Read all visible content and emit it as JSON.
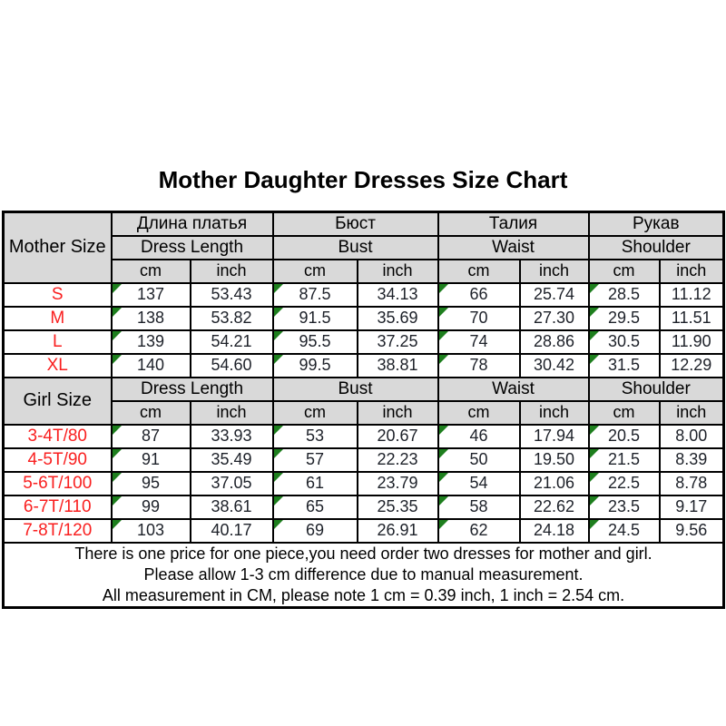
{
  "title": "Mother Daughter Dresses Size Chart",
  "colors": {
    "header_bg": "#d9d9d9",
    "border": "#000000",
    "size_label": "#f91f1f",
    "value_text": "#1d2129",
    "marker_green": "#1e7f1e"
  },
  "mother": {
    "label": "Mother Size",
    "columns": [
      {
        "ru": "Длина платья",
        "en": "Dress Length"
      },
      {
        "ru": "Бюст",
        "en": "Bust"
      },
      {
        "ru": "Талия",
        "en": "Waist"
      },
      {
        "ru": "Рукав",
        "en": "Shoulder"
      }
    ],
    "units": [
      "cm",
      "inch"
    ],
    "rows": [
      {
        "size": "S",
        "values": [
          "137",
          "53.43",
          "87.5",
          "34.13",
          "66",
          "25.74",
          "28.5",
          "11.12"
        ]
      },
      {
        "size": "M",
        "values": [
          "138",
          "53.82",
          "91.5",
          "35.69",
          "70",
          "27.30",
          "29.5",
          "11.51"
        ]
      },
      {
        "size": "L",
        "values": [
          "139",
          "54.21",
          "95.5",
          "37.25",
          "74",
          "28.86",
          "30.5",
          "11.90"
        ]
      },
      {
        "size": "XL",
        "values": [
          "140",
          "54.60",
          "99.5",
          "38.81",
          "78",
          "30.42",
          "31.5",
          "12.29"
        ]
      }
    ]
  },
  "girl": {
    "label": "Girl Size",
    "columns": [
      "Dress Length",
      "Bust",
      "Waist",
      "Shoulder"
    ],
    "units": [
      "cm",
      "inch"
    ],
    "rows": [
      {
        "size": "3-4T/80",
        "values": [
          "87",
          "33.93",
          "53",
          "20.67",
          "46",
          "17.94",
          "20.5",
          "8.00"
        ]
      },
      {
        "size": "4-5T/90",
        "values": [
          "91",
          "35.49",
          "57",
          "22.23",
          "50",
          "19.50",
          "21.5",
          "8.39"
        ]
      },
      {
        "size": "5-6T/100",
        "values": [
          "95",
          "37.05",
          "61",
          "23.79",
          "54",
          "21.06",
          "22.5",
          "8.78"
        ]
      },
      {
        "size": "6-7T/110",
        "values": [
          "99",
          "38.61",
          "65",
          "25.35",
          "58",
          "22.62",
          "23.5",
          "9.17"
        ]
      },
      {
        "size": "7-8T/120",
        "values": [
          "103",
          "40.17",
          "69",
          "26.91",
          "62",
          "24.18",
          "24.5",
          "9.56"
        ]
      }
    ]
  },
  "notes": [
    "There is one price for one piece,you need order two dresses for mother and girl.",
    "Please allow 1-3 cm difference due to manual measurement.",
    "All measurement in CM, please note 1 cm = 0.39 inch, 1 inch = 2.54 cm."
  ]
}
